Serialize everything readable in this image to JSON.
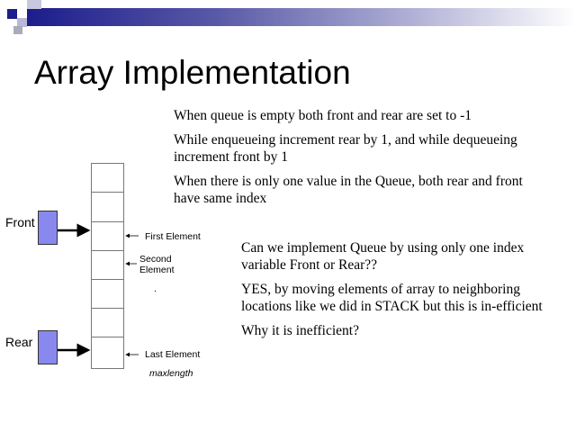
{
  "title": "Array Implementation",
  "top_text": [
    "When queue is empty both front and rear are set to -1",
    "While enqueueing increment rear by 1, and while dequeueing increment front by 1",
    "When there is only one value in the Queue, both rear and front have same index"
  ],
  "bottom_text": [
    "Can we implement Queue by using only one index variable Front or Rear??",
    "YES, by moving elements of array to neighboring locations like we did in STACK but this is in-efficient",
    "Why it is inefficient?"
  ],
  "diagram": {
    "front_label": "Front",
    "rear_label": "Rear",
    "first_element": "First Element",
    "second_element": "Second Element",
    "last_element": "Last Element",
    "maxlength": "maxlength",
    "dots": ".",
    "pointer_color": "#8888ee"
  },
  "colors": {
    "header_bar": "#1c1c8c"
  }
}
